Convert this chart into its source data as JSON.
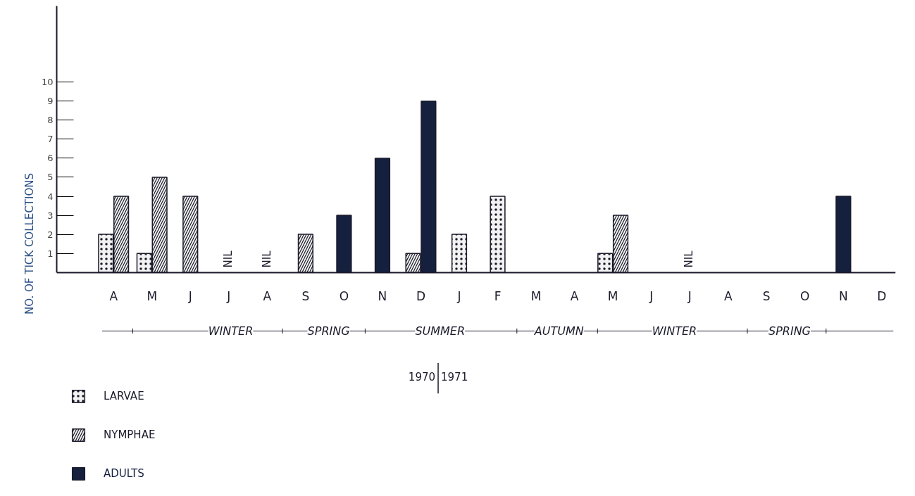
{
  "chart_data": {
    "type": "bar",
    "ylabel": "NO. OF TICK COLLECTIONS",
    "categories": [
      "A",
      "M",
      "J",
      "J",
      "A",
      "S",
      "O",
      "N",
      "D",
      "J",
      "F",
      "M",
      "A",
      "M",
      "J",
      "J",
      "A",
      "S",
      "O",
      "N",
      "D"
    ],
    "series": [
      {
        "name": "LARVAE",
        "color": "#1a1a2a",
        "values": [
          2,
          1,
          null,
          null,
          null,
          null,
          null,
          null,
          null,
          2,
          4,
          null,
          null,
          1,
          null,
          null,
          null,
          null,
          null,
          null,
          null
        ]
      },
      {
        "name": "NYMPHAE",
        "color": "#1a1a2a",
        "values": [
          4,
          5,
          4,
          null,
          null,
          2,
          null,
          null,
          1,
          null,
          null,
          null,
          null,
          3,
          null,
          null,
          null,
          null,
          null,
          null,
          null
        ],
        "value_labels": [
          null,
          null,
          null,
          "NIL",
          "NIL",
          null,
          null,
          null,
          null,
          null,
          null,
          null,
          null,
          null,
          null,
          "NIL",
          null,
          null,
          null,
          null,
          null
        ]
      },
      {
        "name": "ADULTS",
        "color": "#15203f",
        "values": [
          null,
          null,
          null,
          null,
          null,
          null,
          3,
          6,
          9,
          null,
          null,
          null,
          null,
          null,
          null,
          null,
          null,
          null,
          null,
          4,
          null
        ]
      }
    ],
    "ylim": [
      0,
      14
    ],
    "yticks": [
      1,
      2,
      3,
      4,
      5,
      6,
      7,
      8,
      9,
      10
    ],
    "grid": false,
    "legend": "bottom left",
    "annotations": [
      "WINTER",
      "SPRING",
      "SUMMER",
      "AUTUMN",
      "WINTER",
      "SPRING",
      "1970",
      "1971"
    ]
  }
}
